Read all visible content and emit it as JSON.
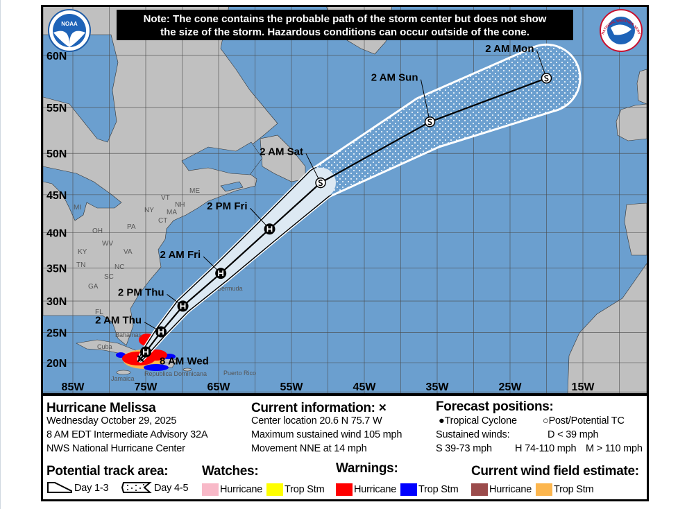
{
  "note": {
    "line1": "Note: The cone contains the probable path of the storm center but does not show",
    "line2": "the size of the storm. Hazardous conditions can occur outside of the cone."
  },
  "logos": {
    "noaa": "NOAA",
    "nws": "NATIONAL WEATHER SERVICE"
  },
  "map": {
    "lat_labels": [
      {
        "lat": 60,
        "label": "60N"
      },
      {
        "lat": 55,
        "label": "55N"
      },
      {
        "lat": 50,
        "label": "50N"
      },
      {
        "lat": 45,
        "label": "45N"
      },
      {
        "lat": 40,
        "label": "40N"
      },
      {
        "lat": 35,
        "label": "35N"
      },
      {
        "lat": 30,
        "label": "30N"
      },
      {
        "lat": 25,
        "label": "25N"
      },
      {
        "lat": 20,
        "label": "20N"
      }
    ],
    "lon_labels": [
      {
        "lon": 85,
        "label": "85W"
      },
      {
        "lon": 75,
        "label": "75W"
      },
      {
        "lon": 65,
        "label": "65W"
      },
      {
        "lon": 55,
        "label": "55W"
      },
      {
        "lon": 45,
        "label": "45W"
      },
      {
        "lon": 35,
        "label": "35W"
      },
      {
        "lon": 25,
        "label": "25W"
      },
      {
        "lon": 15,
        "label": "15W"
      }
    ],
    "place_labels": [
      "MI",
      "OH",
      "PA",
      "NY",
      "VT",
      "NH",
      "MA",
      "CT",
      "ME",
      "WV",
      "VA",
      "KY",
      "TN",
      "NC",
      "SC",
      "GA",
      "FL",
      "Cuba",
      "Jamaica",
      "Bahamas",
      "Bermuda",
      "Republica Dominicana",
      "Puerto Rico"
    ],
    "current_position": {
      "lat": 20.6,
      "lon": 75.7,
      "symbol": "×"
    },
    "forecast_points": [
      {
        "label": "8 AM Wed",
        "lat": 21.8,
        "lon": 75.0,
        "type": "H",
        "cone": "Day 1-3"
      },
      {
        "label": "2 AM Thu",
        "lat": 25.1,
        "lon": 72.9,
        "type": "H",
        "cone": "Day 1-3"
      },
      {
        "label": "2 PM Thu",
        "lat": 29.2,
        "lon": 69.9,
        "type": "H",
        "cone": "Day 1-3"
      },
      {
        "label": "2 AM Fri",
        "lat": 34.2,
        "lon": 64.7,
        "type": "H",
        "cone": "Day 1-3"
      },
      {
        "label": "2 PM Fri",
        "lat": 40.5,
        "lon": 58.0,
        "type": "H",
        "cone": "Day 1-3"
      },
      {
        "label": "2 AM Sat",
        "lat": 46.5,
        "lon": 51.0,
        "type": "S",
        "cone": "Day 1-3"
      },
      {
        "label": "2 AM Sun",
        "lat": 53.5,
        "lon": 36.0,
        "type": "S",
        "cone": "Day 4-5"
      },
      {
        "label": "2 AM Mon",
        "lat": 57.9,
        "lon": 20.0,
        "type": "S",
        "cone": "Day 4-5"
      }
    ],
    "colors": {
      "ocean": "#6b9fcf",
      "land": "#c0c0c0",
      "cone_day13": "#dde9f3",
      "hurricane_warning": "#ff0000",
      "ts_warning": "#0000ff",
      "hurricane_watch": "#f8b9c8",
      "ts_watch": "#ffff00",
      "hurricane_wind": "#9b4b4b",
      "ts_wind": "#fcb64e"
    }
  },
  "info": {
    "storm_name": "Hurricane Melissa",
    "date": "Wednesday October 29, 2025",
    "advisory": "8 AM EDT Intermediate Advisory 32A",
    "center": "NWS National Hurricane Center",
    "current_title": "Current information: ×",
    "location": "Center location 20.6 N 75.7 W",
    "max_wind": "Maximum sustained wind 105 mph",
    "movement": "Movement NNE at 14 mph",
    "forecast_title": "Forecast positions:",
    "tropical_cyclone": "Tropical Cyclone",
    "post_tc": "Post/Potential TC",
    "sustained_winds": "Sustained winds:",
    "d_range": "D < 39 mph",
    "s_range": "S 39-73 mph",
    "h_range": "H 74-110 mph",
    "m_range": "M > 110 mph"
  },
  "legend": {
    "track_title": "Potential track area:",
    "day13": "Day 1-3",
    "day45": "Day 4-5",
    "watches_title": "Watches:",
    "watch_hurricane": "Hurricane",
    "watch_ts": "Trop Stm",
    "warnings_title": "Warnings:",
    "warning_hurricane": "Hurricane",
    "warning_ts": "Trop Stm",
    "wind_title": "Current wind field estimate:",
    "wind_hurricane": "Hurricane",
    "wind_ts": "Trop Stm"
  }
}
